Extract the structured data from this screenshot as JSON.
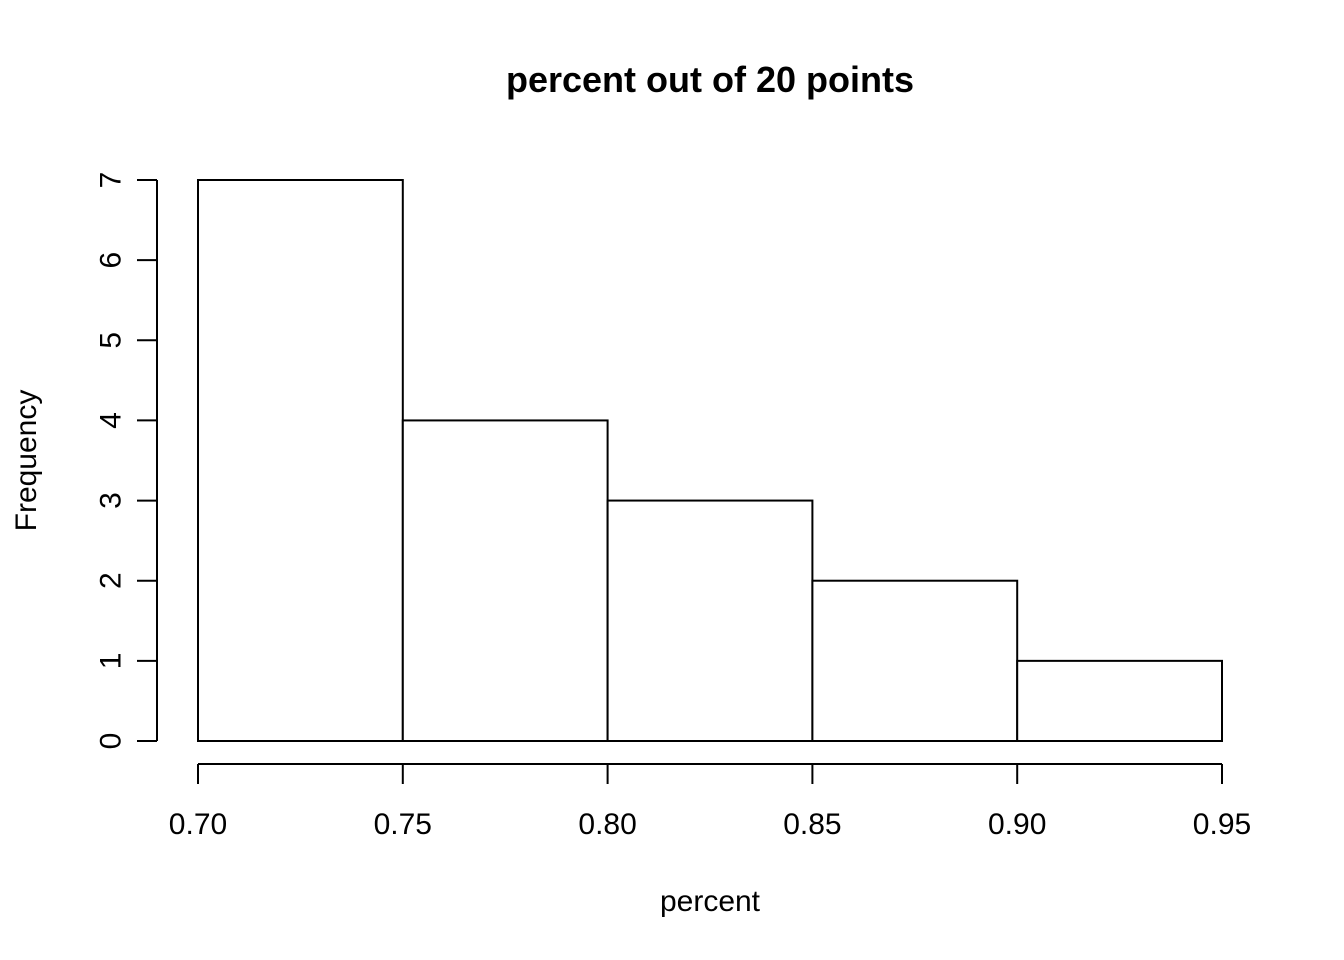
{
  "chart_data": {
    "type": "bar",
    "title": "percent out of 20 points",
    "xlabel": "percent",
    "ylabel": "Frequency",
    "bins": [
      {
        "start": 0.7,
        "end": 0.75,
        "count": 7
      },
      {
        "start": 0.75,
        "end": 0.8,
        "count": 4
      },
      {
        "start": 0.8,
        "end": 0.85,
        "count": 3
      },
      {
        "start": 0.85,
        "end": 0.9,
        "count": 2
      },
      {
        "start": 0.9,
        "end": 0.95,
        "count": 1
      }
    ],
    "xlim": [
      0.7,
      0.95
    ],
    "ylim": [
      0,
      7
    ],
    "x_ticks": [
      "0.70",
      "0.75",
      "0.80",
      "0.85",
      "0.90",
      "0.95"
    ],
    "y_ticks": [
      "0",
      "1",
      "2",
      "3",
      "4",
      "5",
      "6",
      "7"
    ],
    "grid": false,
    "bar_fill": "#ffffff",
    "bar_stroke": "#000000"
  }
}
